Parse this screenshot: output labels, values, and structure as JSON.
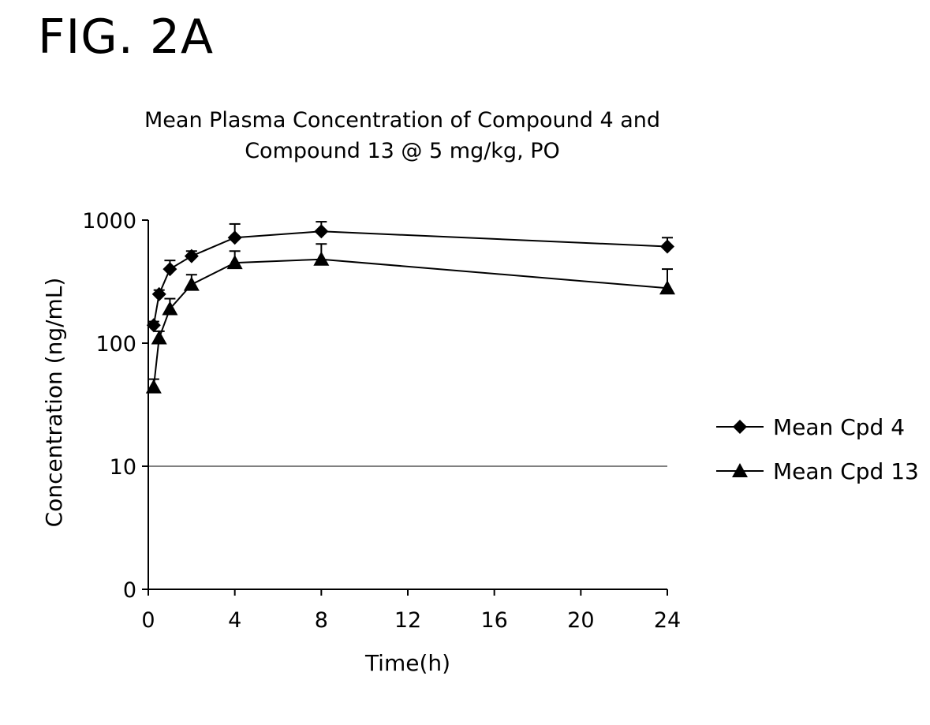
{
  "figure_label": "FIG. 2A",
  "chart_data": {
    "type": "line",
    "title_lines": [
      "Mean Plasma Concentration of Compound 4 and",
      "Compound 13 @ 5 mg/kg, PO"
    ],
    "xlabel": "Time(h)",
    "ylabel": "Concentration (ng/mL)",
    "x_ticks": [
      0,
      4,
      8,
      12,
      16,
      20,
      24
    ],
    "xlim": [
      0,
      24
    ],
    "y_scale": "log",
    "y_ticks": [
      {
        "value": 1,
        "label": "0"
      },
      {
        "value": 10,
        "label": "10"
      },
      {
        "value": 100,
        "label": "100"
      },
      {
        "value": 1000,
        "label": "1000"
      }
    ],
    "ylim": [
      1,
      1000
    ],
    "gridlines_y": [
      10
    ],
    "legend_position": "right",
    "series": [
      {
        "name": "Mean Cpd 4",
        "marker": "diamond",
        "x": [
          0.25,
          0.5,
          1,
          2,
          4,
          8,
          24
        ],
        "values": [
          140,
          250,
          400,
          510,
          720,
          810,
          610
        ],
        "error_upper": [
          150,
          270,
          470,
          560,
          930,
          970,
          720
        ]
      },
      {
        "name": "Mean Cpd 13",
        "marker": "triangle",
        "x": [
          0.25,
          0.5,
          1,
          2,
          4,
          8,
          24
        ],
        "values": [
          44,
          110,
          190,
          300,
          450,
          480,
          280
        ],
        "error_upper": [
          51,
          125,
          230,
          360,
          560,
          640,
          400
        ]
      }
    ],
    "colors": {
      "line": "#000000",
      "grid": "#000000",
      "background": "#ffffff"
    }
  }
}
